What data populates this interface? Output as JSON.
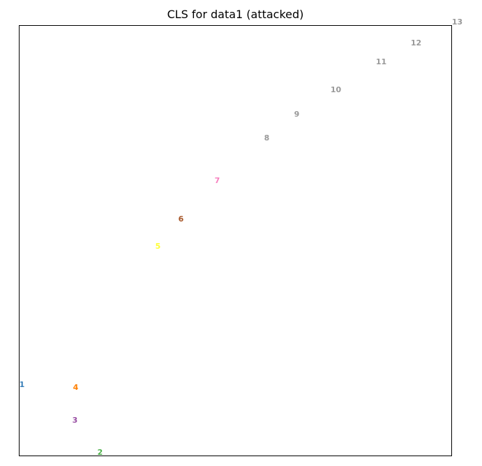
{
  "chart_data": {
    "type": "scatter",
    "title": "CLS for data1 (attacked)",
    "xlabel": "",
    "ylabel": "",
    "grid": false,
    "legend": "none",
    "axis_ticks": "none",
    "xlim": [
      0,
      620
    ],
    "ylim": [
      0,
      616
    ],
    "points": [
      {
        "label": "1",
        "x": 4,
        "y": 102,
        "color": "#377eb8"
      },
      {
        "label": "2",
        "x": 116,
        "y": 5,
        "color": "#4daf4a"
      },
      {
        "label": "3",
        "x": 80,
        "y": 51,
        "color": "#984ea3"
      },
      {
        "label": "4",
        "x": 81,
        "y": 98,
        "color": "#ff7f00"
      },
      {
        "label": "5",
        "x": 199,
        "y": 300,
        "color": "#ffff33"
      },
      {
        "label": "6",
        "x": 232,
        "y": 339,
        "color": "#a65628"
      },
      {
        "label": "7",
        "x": 284,
        "y": 394,
        "color": "#f781bf"
      },
      {
        "label": "8",
        "x": 355,
        "y": 455,
        "color": "#999999"
      },
      {
        "label": "9",
        "x": 398,
        "y": 489,
        "color": "#999999"
      },
      {
        "label": "10",
        "x": 454,
        "y": 524,
        "color": "#999999"
      },
      {
        "label": "11",
        "x": 519,
        "y": 564,
        "color": "#999999"
      },
      {
        "label": "12",
        "x": 569,
        "y": 591,
        "color": "#999999"
      },
      {
        "label": "13",
        "x": 628,
        "y": 621,
        "color": "#999999"
      }
    ]
  }
}
